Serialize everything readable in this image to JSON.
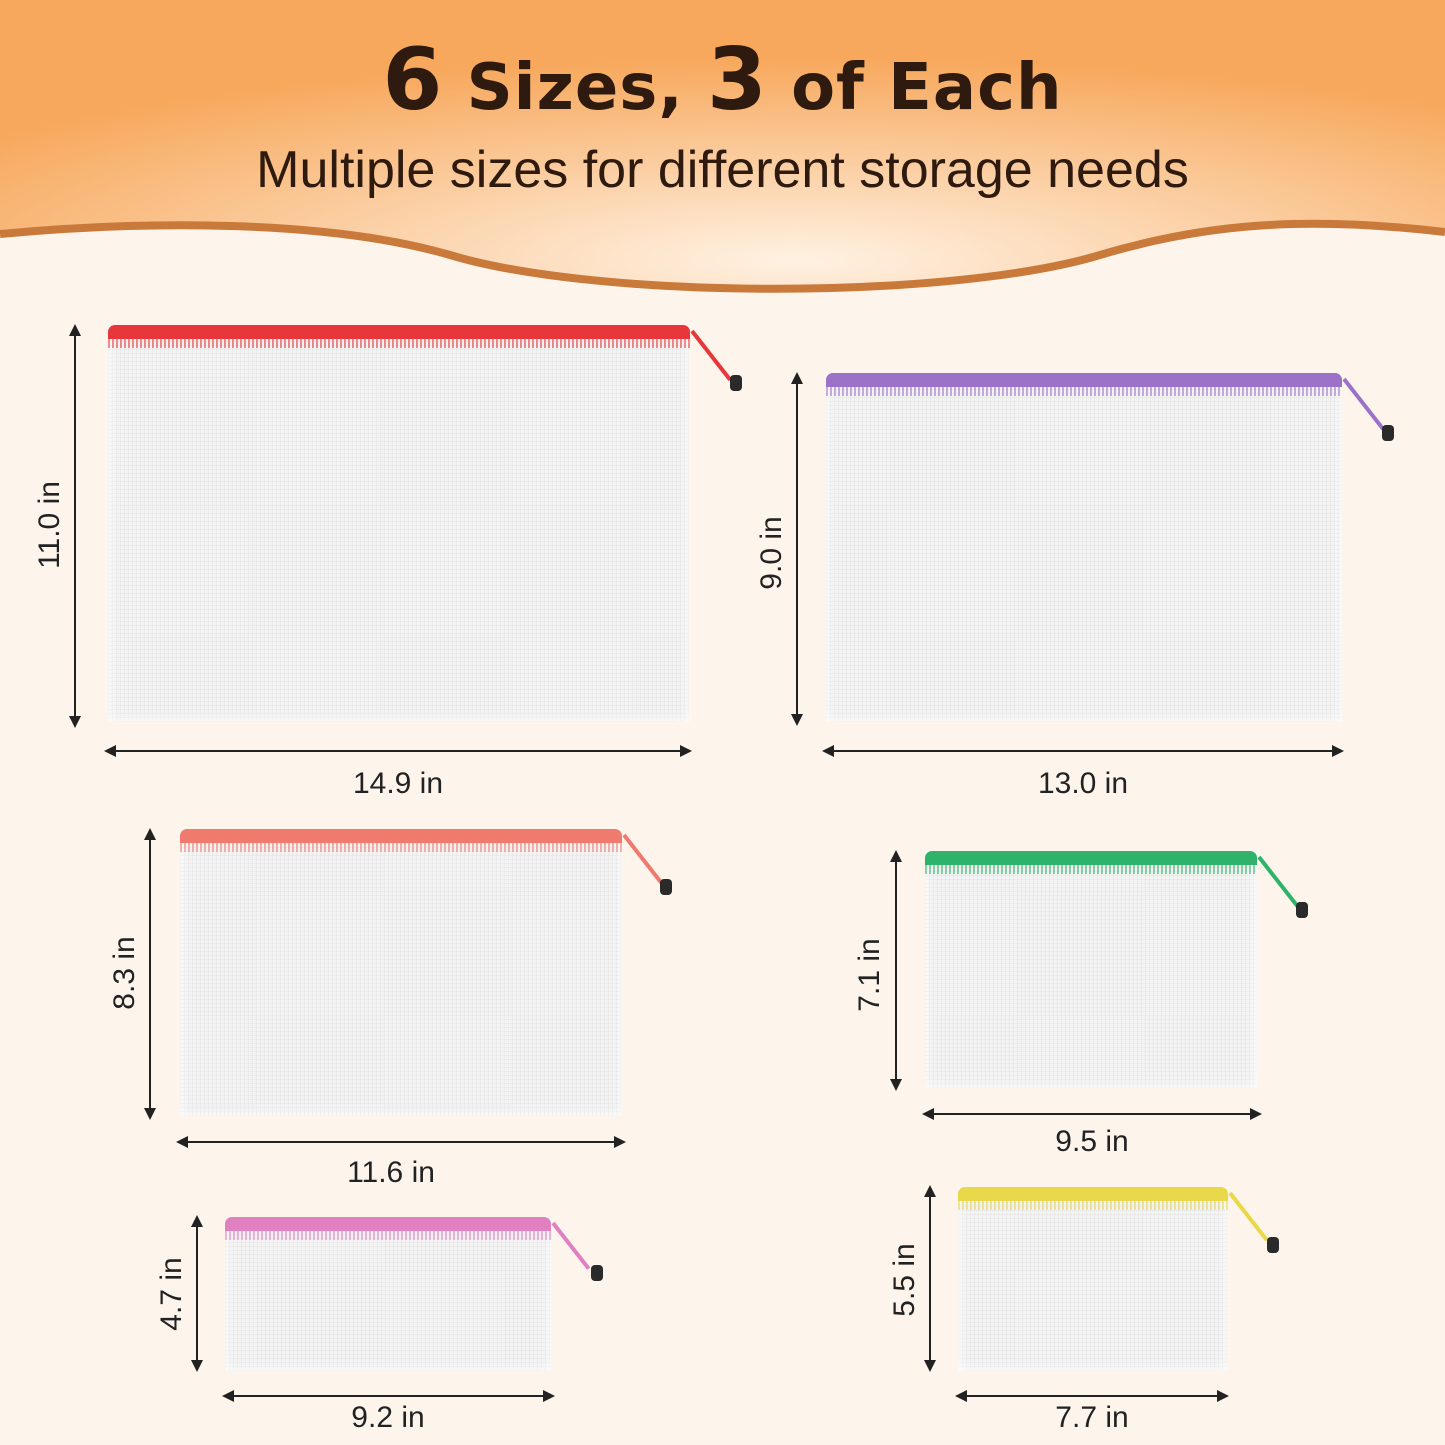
{
  "header": {
    "title_num1": "6",
    "title_part1": " Sizes, ",
    "title_num2": "3",
    "title_part2": " of Each",
    "subtitle": "Multiple sizes for different storage needs"
  },
  "colors": {
    "banner": "#f7b06a",
    "wave_stroke": "#c97a3a",
    "background": "#fdf4ec",
    "text": "#2e1a0e"
  },
  "bags": [
    {
      "color": "#e8373a",
      "width": "14.9 in",
      "height": "11.0 in"
    },
    {
      "color": "#9b72c8",
      "width": "13.0 in",
      "height": "9.0 in"
    },
    {
      "color": "#ef7b6e",
      "width": "11.6 in",
      "height": "8.3 in"
    },
    {
      "color": "#2fb36b",
      "width": "9.5 in",
      "height": "7.1 in"
    },
    {
      "color": "#e080c0",
      "width": "9.2 in",
      "height": "4.7 in"
    },
    {
      "color": "#e8d84a",
      "width": "7.7 in",
      "height": "5.5 in"
    }
  ]
}
